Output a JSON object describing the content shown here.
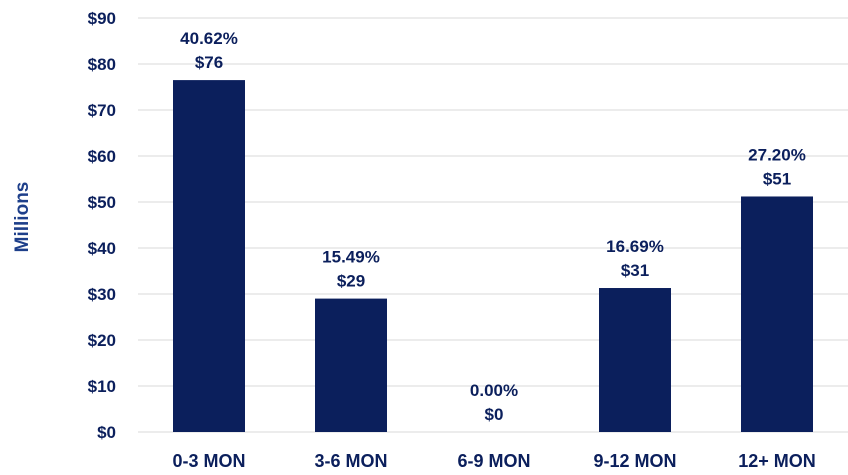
{
  "chart_data": {
    "type": "bar",
    "ylabel": "Millions",
    "ylim": [
      0,
      90
    ],
    "yticks": [
      0,
      10,
      20,
      30,
      40,
      50,
      60,
      70,
      80,
      90
    ],
    "ytick_labels": [
      "$0",
      "$10",
      "$20",
      "$30",
      "$40",
      "$50",
      "$60",
      "$70",
      "$80",
      "$90"
    ],
    "categories": [
      "0-3 MON",
      "3-6 MON",
      "6-9 MON",
      "9-12 MON",
      "12+ MON"
    ],
    "values": [
      76.5,
      29,
      0,
      31.3,
      51.2
    ],
    "percent_labels": [
      "40.62%",
      "15.49%",
      "0.00%",
      "16.69%",
      "27.20%"
    ],
    "value_labels": [
      "$76",
      "$29",
      "$0",
      "$31",
      "$51"
    ],
    "grid": true,
    "legend": "none"
  },
  "colors": {
    "bar": "#0b1f5c",
    "text": "#0b1f5c",
    "ylabel": "#1e3f8a",
    "grid": "#d9d9d9"
  }
}
